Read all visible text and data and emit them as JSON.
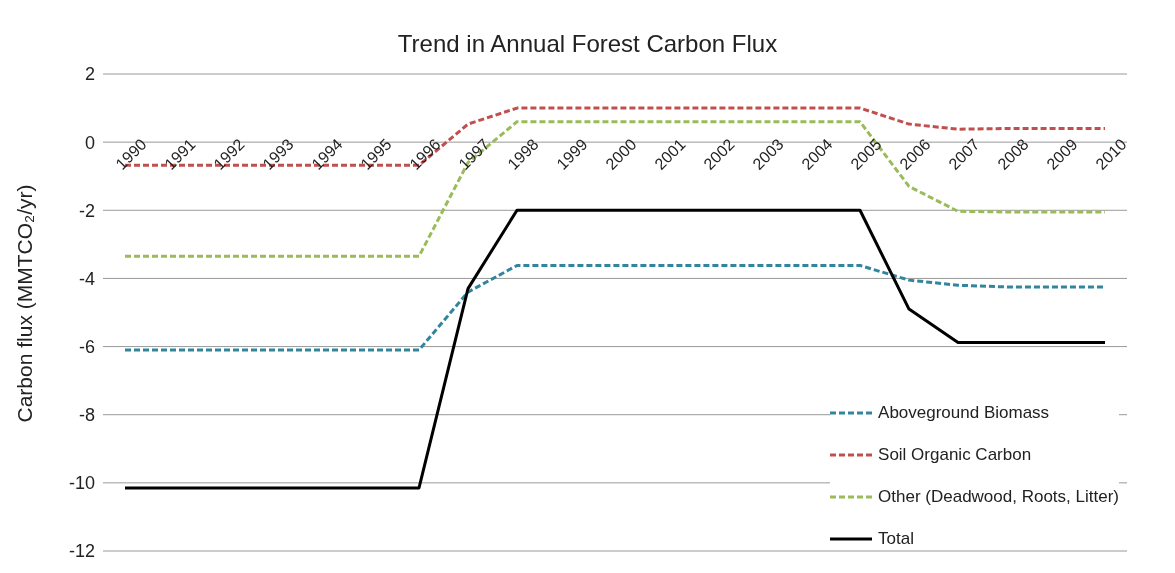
{
  "chart_data": {
    "type": "line",
    "title": "Trend in Annual Forest Carbon Flux",
    "ylabel": "Carbon flux (MMTCO₂/yr)",
    "categories": [
      "1990",
      "1991",
      "1992",
      "1993",
      "1994",
      "1995",
      "1996",
      "1997",
      "1998",
      "1999",
      "2000",
      "2001",
      "2002",
      "2003",
      "2004",
      "2005",
      "2006",
      "2007",
      "2008",
      "2009",
      "2010"
    ],
    "series": [
      {
        "name": "Aboveground Biomass",
        "color": "#31859c",
        "line_style": "dashed",
        "values": [
          -6.1,
          -6.1,
          -6.1,
          -6.1,
          -6.1,
          -6.1,
          -6.1,
          -4.4,
          -3.62,
          -3.62,
          -3.62,
          -3.62,
          -3.62,
          -3.62,
          -3.62,
          -3.62,
          -4.05,
          -4.2,
          -4.25,
          -4.25,
          -4.25
        ]
      },
      {
        "name": "Soil Organic Carbon",
        "color": "#c0504d",
        "line_style": "dashed",
        "values": [
          -0.68,
          -0.68,
          -0.68,
          -0.68,
          -0.68,
          -0.68,
          -0.68,
          0.53,
          1.0,
          1.0,
          1.0,
          1.0,
          1.0,
          1.0,
          1.0,
          1.0,
          0.53,
          0.38,
          0.4,
          0.4,
          0.4
        ]
      },
      {
        "name": "Other (Deadwood, Roots, Litter)",
        "color": "#9bbb59",
        "line_style": "dashed",
        "values": [
          -3.35,
          -3.35,
          -3.35,
          -3.35,
          -3.35,
          -3.35,
          -3.35,
          -0.6,
          0.6,
          0.6,
          0.6,
          0.6,
          0.6,
          0.6,
          0.6,
          0.6,
          -1.3,
          -2.03,
          -2.05,
          -2.05,
          -2.05
        ]
      },
      {
        "name": "Total",
        "color": "#000000",
        "line_style": "solid",
        "values": [
          -10.15,
          -10.15,
          -10.15,
          -10.15,
          -10.15,
          -10.15,
          -10.15,
          -4.3,
          -2.0,
          -2.0,
          -2.0,
          -2.0,
          -2.0,
          -2.0,
          -2.0,
          -2.0,
          -4.9,
          -5.88,
          -5.88,
          -5.88,
          -5.88
        ]
      }
    ],
    "ylim": [
      -12,
      2
    ],
    "yticks": [
      -12,
      -10,
      -8,
      -6,
      -4,
      -2,
      0,
      2
    ],
    "grid": "y",
    "legend": "bottom right",
    "marker": "none"
  }
}
